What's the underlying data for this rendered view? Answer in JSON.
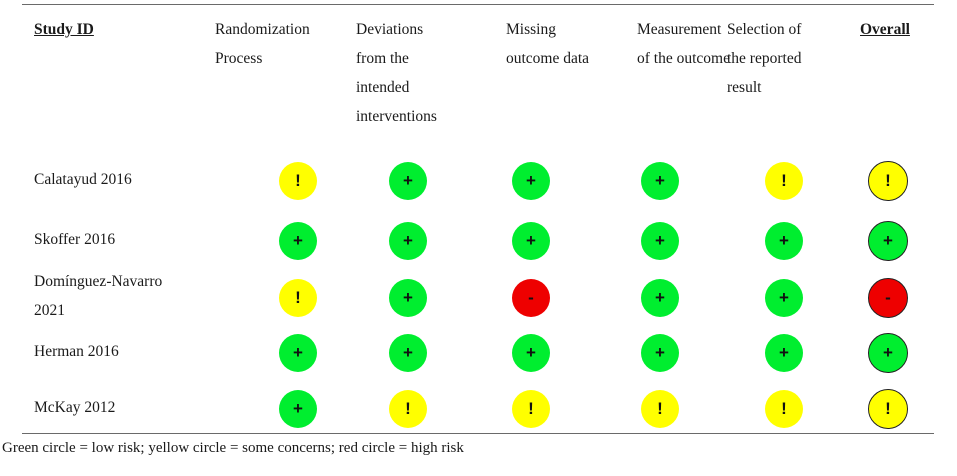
{
  "headers": [
    {
      "label": "Study ID"
    },
    {
      "label": "Randomization Process"
    },
    {
      "label": "Deviations from the intended interventions"
    },
    {
      "label": "Missing outcome data"
    },
    {
      "label": "Measurement of the outcome"
    },
    {
      "label": "Selection of the reported result"
    },
    {
      "label": "Overall"
    }
  ],
  "header_lines": [
    [
      "Study ID"
    ],
    [
      "Randomization",
      "Process"
    ],
    [
      "Deviations",
      "from the",
      "intended",
      "interventions"
    ],
    [
      "Missing",
      "outcome data"
    ],
    [
      "Measurement",
      "of the outcome"
    ],
    [
      "Selection of",
      "the reported",
      "result"
    ],
    [
      "Overall"
    ]
  ],
  "colors": {
    "low": "#00ee2f",
    "some": "#ffff00",
    "high": "#ee0000"
  },
  "symbols": {
    "low": "+",
    "some": "!",
    "high": "-"
  },
  "rows": [
    {
      "study_lines": [
        "Calatayud 2016"
      ],
      "ratings": [
        "some",
        "low",
        "low",
        "low",
        "some",
        "some"
      ]
    },
    {
      "study_lines": [
        "Skoffer 2016"
      ],
      "ratings": [
        "low",
        "low",
        "low",
        "low",
        "low",
        "low"
      ]
    },
    {
      "study_lines": [
        "Domínguez-Navarro",
        "2021"
      ],
      "ratings": [
        "some",
        "low",
        "high",
        "low",
        "low",
        "high"
      ]
    },
    {
      "study_lines": [
        "Herman 2016"
      ],
      "ratings": [
        "low",
        "low",
        "low",
        "low",
        "low",
        "low"
      ]
    },
    {
      "study_lines": [
        "McKay 2012"
      ],
      "ratings": [
        "low",
        "some",
        "some",
        "some",
        "some",
        "some"
      ]
    }
  ],
  "legend": "Green circle = low risk; yellow circle = some concerns; red circle = high risk"
}
